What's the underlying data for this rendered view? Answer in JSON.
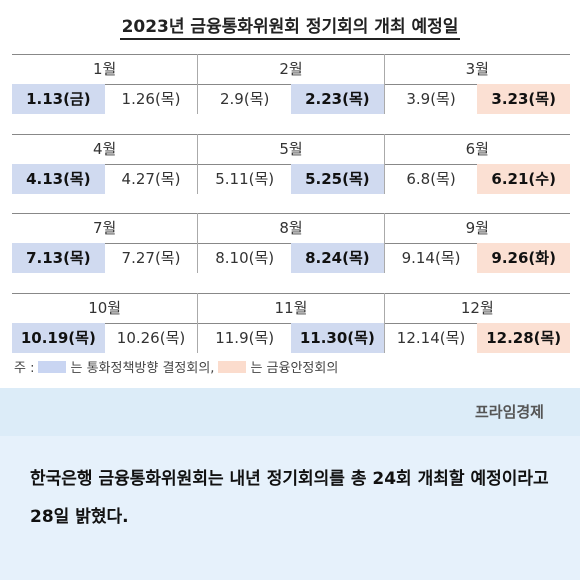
{
  "title": "2023년 금융통화위원회 정기회의 개최 예정일",
  "quarters": [
    {
      "months": [
        "1월",
        "2월",
        "3월"
      ],
      "dates": [
        {
          "text": "1.13(금)",
          "type": "blue"
        },
        {
          "text": "1.26(목)",
          "type": "plain"
        },
        {
          "text": "2.9(목)",
          "type": "plain"
        },
        {
          "text": "2.23(목)",
          "type": "blue"
        },
        {
          "text": "3.9(목)",
          "type": "plain"
        },
        {
          "text": "3.23(목)",
          "type": "pink"
        }
      ]
    },
    {
      "months": [
        "4월",
        "5월",
        "6월"
      ],
      "dates": [
        {
          "text": "4.13(목)",
          "type": "blue"
        },
        {
          "text": "4.27(목)",
          "type": "plain"
        },
        {
          "text": "5.11(목)",
          "type": "plain"
        },
        {
          "text": "5.25(목)",
          "type": "blue"
        },
        {
          "text": "6.8(목)",
          "type": "plain"
        },
        {
          "text": "6.21(수)",
          "type": "pink"
        }
      ]
    },
    {
      "months": [
        "7월",
        "8월",
        "9월"
      ],
      "dates": [
        {
          "text": "7.13(목)",
          "type": "blue"
        },
        {
          "text": "7.27(목)",
          "type": "plain"
        },
        {
          "text": "8.10(목)",
          "type": "plain"
        },
        {
          "text": "8.24(목)",
          "type": "blue"
        },
        {
          "text": "9.14(목)",
          "type": "plain"
        },
        {
          "text": "9.26(화)",
          "type": "pink"
        }
      ]
    },
    {
      "months": [
        "10월",
        "11월",
        "12월"
      ],
      "dates": [
        {
          "text": "10.19(목)",
          "type": "blue"
        },
        {
          "text": "10.26(목)",
          "type": "plain"
        },
        {
          "text": "11.9(목)",
          "type": "plain"
        },
        {
          "text": "11.30(목)",
          "type": "blue"
        },
        {
          "text": "12.14(목)",
          "type": "plain"
        },
        {
          "text": "12.28(목)",
          "type": "pink"
        }
      ]
    }
  ],
  "legend": {
    "prefix": "주 :",
    "blue_label": "는 통화정책방향 결정회의,",
    "pink_label": "는 금융안정회의",
    "blue_color": "#c9d5f2",
    "pink_color": "#fbdccd"
  },
  "source": "프라임경제",
  "caption": "한국은행 금융통화위원회는 내년 정기회의를 총 24회 개최할 예정이라고 28일 밝혔다."
}
